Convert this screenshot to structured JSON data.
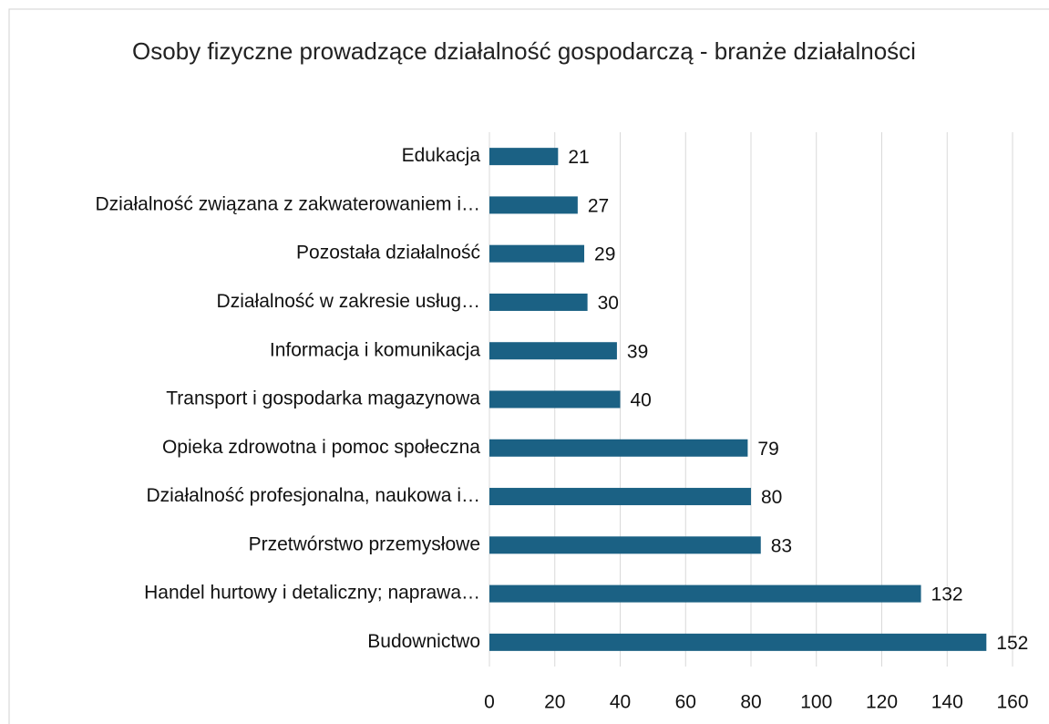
{
  "chart_data": {
    "type": "bar",
    "orientation": "horizontal",
    "title": "Osoby fizyczne prowadzące działalność gospodarczą - branże działalności",
    "categories": [
      "Edukacja",
      "Działalność związana z zakwaterowaniem i…",
      "Pozostała działalność",
      "Działalność w zakresie usług…",
      "Informacja i komunikacja",
      "Transport i gospodarka magazynowa",
      "Opieka zdrowotna i pomoc społeczna",
      "Działalność profesjonalna, naukowa i…",
      "Przetwórstwo przemysłowe",
      "Handel hurtowy i detaliczny; naprawa…",
      "Budownictwo"
    ],
    "values": [
      21,
      27,
      29,
      30,
      39,
      40,
      79,
      80,
      83,
      132,
      152
    ],
    "color": "#1b6184",
    "xlim": [
      0,
      160
    ],
    "xticks": [
      0,
      20,
      40,
      60,
      80,
      100,
      120,
      140,
      160
    ],
    "grid": true
  }
}
